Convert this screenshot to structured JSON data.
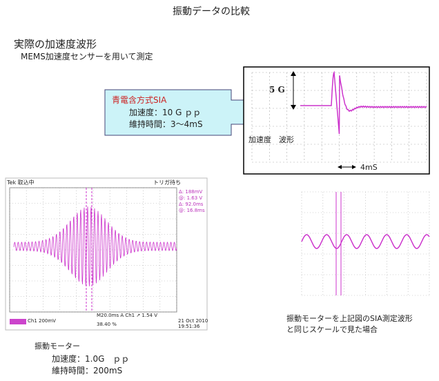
{
  "title": "振動データの比較",
  "section": {
    "heading": "実際の加速度波形",
    "subheading": "MEMS加速度センサーを用いて測定"
  },
  "callout": {
    "name": "青電含方式SIA",
    "accel": "加速度：10 G ｐｐ",
    "duration": "維持時間：3～4mS"
  },
  "sia_scope": {
    "scale_label": "5 G",
    "wave_label": "加速度　波形",
    "time_label": "4mS"
  },
  "motor_scope": {
    "status": "Tek 取込中",
    "trigger": "トリガ待ち",
    "readouts": [
      "Δ: 188mV",
      "@: 1.63 V",
      "Δ: 92.0ms",
      "@: 16.8ms"
    ],
    "channel": "Ch1  200mV",
    "timebase": "M20.0ms  A  Ch1 ↗  1.54 V",
    "date": "21 Oct  2010",
    "time": "19:51:36",
    "position": "38.40 %"
  },
  "scaled_caption": [
    "振動モーターを上記図のSIA測定波形",
    "と同じスケールで見た場合"
  ],
  "motor": {
    "name": "振動モーター",
    "accel": "加速度：1.0G　ｐｐ",
    "duration": "維持時間：200mS"
  }
}
